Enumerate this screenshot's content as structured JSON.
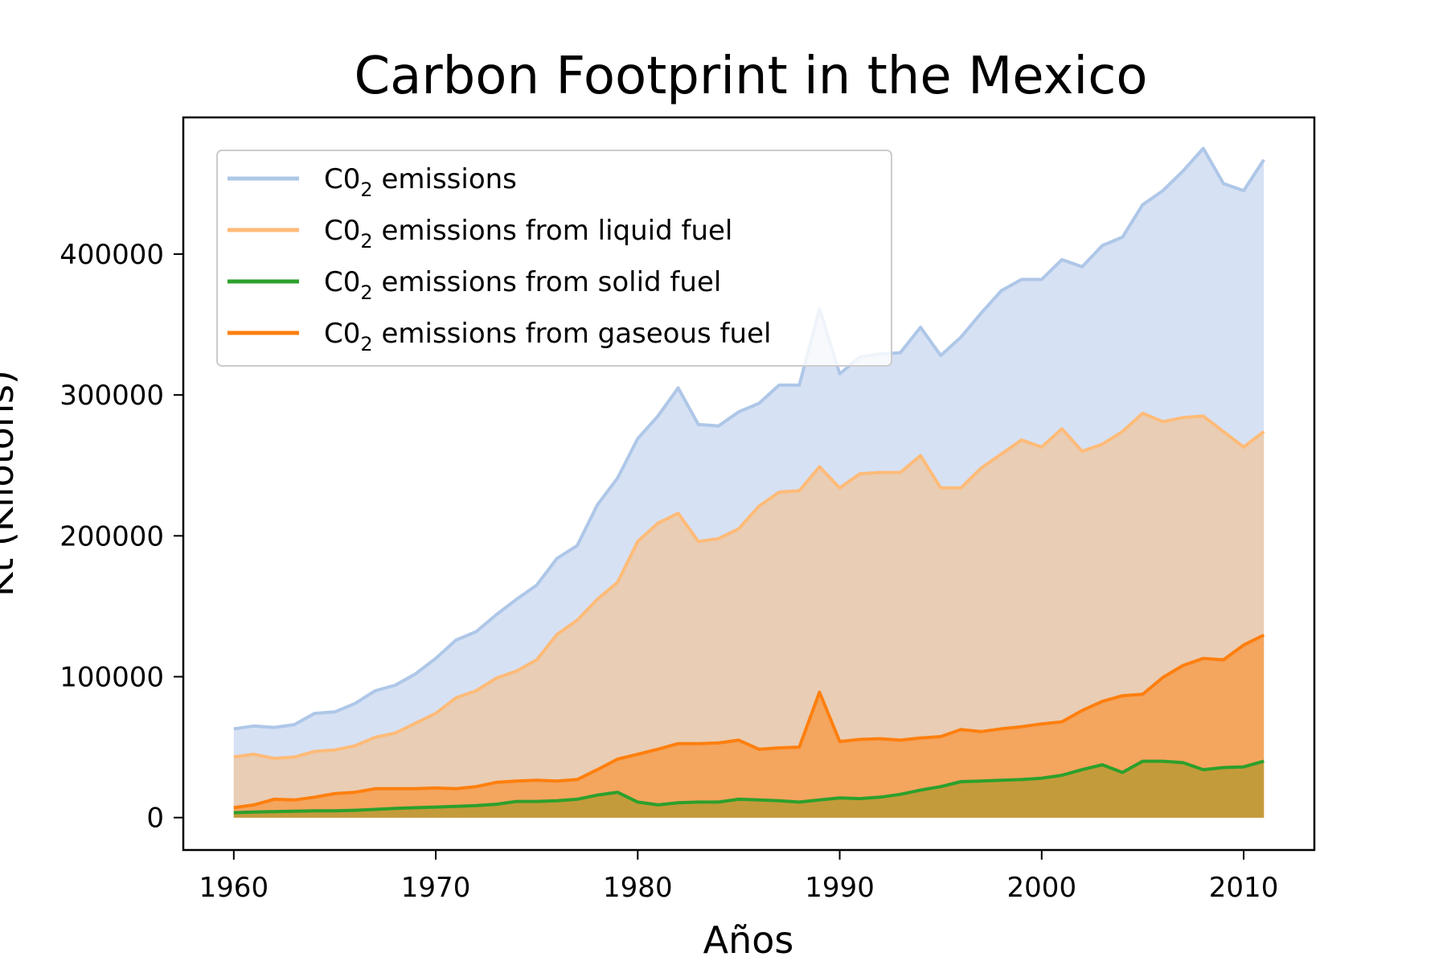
{
  "chart_data": {
    "type": "area",
    "title": "Carbon Footprint in the Mexico",
    "xlabel": "Años",
    "ylabel": "Kt (Kilotons)",
    "xlim": [
      1957.5,
      2013.5
    ],
    "ylim": [
      -23000,
      497000
    ],
    "xticks": [
      1960,
      1970,
      1980,
      1990,
      2000,
      2010
    ],
    "yticks": [
      0,
      100000,
      200000,
      300000,
      400000
    ],
    "grid": false,
    "legend_position": "upper-left",
    "x": [
      1960,
      1961,
      1962,
      1963,
      1964,
      1965,
      1966,
      1967,
      1968,
      1969,
      1970,
      1971,
      1972,
      1973,
      1974,
      1975,
      1976,
      1977,
      1978,
      1979,
      1980,
      1981,
      1982,
      1983,
      1984,
      1985,
      1986,
      1987,
      1988,
      1989,
      1990,
      1991,
      1992,
      1993,
      1994,
      1995,
      1996,
      1997,
      1998,
      1999,
      2000,
      2001,
      2002,
      2003,
      2004,
      2005,
      2006,
      2007,
      2008,
      2009,
      2010,
      2011
    ],
    "series": [
      {
        "name": "C0",
        "name_subscript": "2",
        "name_suffix": " emissions",
        "line_color": "#aec7e8",
        "fill_color": "#d6e1f4",
        "values": [
          63000,
          65000,
          64000,
          66000,
          74000,
          75000,
          81000,
          90000,
          94000,
          102000,
          113000,
          126000,
          132000,
          144000,
          155000,
          165000,
          184000,
          193000,
          222000,
          241000,
          269000,
          285000,
          305000,
          279000,
          278000,
          288000,
          294000,
          307000,
          307000,
          361000,
          315000,
          327000,
          329000,
          330000,
          348000,
          328000,
          341000,
          358000,
          374000,
          382000,
          382000,
          396000,
          391000,
          406000,
          412000,
          435000,
          445000,
          459000,
          475000,
          450000,
          445000,
          467000
        ]
      },
      {
        "name": "C0",
        "name_subscript": "2",
        "name_suffix": " emissions from liquid fuel",
        "line_color": "#ffbb78",
        "fill_color": "#e9cdb4",
        "values": [
          43000,
          45000,
          42000,
          43000,
          47000,
          48000,
          51000,
          57000,
          60000,
          67000,
          74000,
          85000,
          90000,
          99000,
          104000,
          112000,
          130000,
          140000,
          155000,
          167000,
          196000,
          209000,
          216000,
          196000,
          198000,
          205000,
          221000,
          231000,
          232000,
          249000,
          234000,
          244000,
          245000,
          245000,
          257000,
          234000,
          234000,
          248000,
          258000,
          268000,
          263000,
          276000,
          260000,
          265000,
          274000,
          287000,
          281000,
          284000,
          285000,
          274000,
          263000,
          274000
        ]
      },
      {
        "name": "C0",
        "name_subscript": "2",
        "name_suffix": " emissions from solid fuel",
        "line_color": "#2ca02c",
        "fill_color": "#c49b3a",
        "values": [
          3500,
          4000,
          4200,
          4500,
          4800,
          4800,
          5200,
          5800,
          6500,
          7000,
          7500,
          8000,
          8500,
          9500,
          11500,
          11500,
          12000,
          13000,
          16000,
          18000,
          11000,
          9000,
          10500,
          11000,
          11000,
          13000,
          12500,
          12000,
          11000,
          12500,
          14000,
          13500,
          14500,
          16500,
          19500,
          22000,
          25500,
          26000,
          26500,
          27000,
          28000,
          30000,
          34000,
          37500,
          32000,
          40000,
          40000,
          39000,
          34000,
          35500,
          36000,
          40000
        ]
      },
      {
        "name": "C0",
        "name_subscript": "2",
        "name_suffix": " emissions from gaseous fuel",
        "line_color": "#ff7f0e",
        "fill_color": "#f4a55e",
        "values": [
          7000,
          9000,
          13000,
          12500,
          14500,
          17000,
          18000,
          20500,
          20500,
          20500,
          21000,
          20500,
          22000,
          25000,
          26000,
          26500,
          26000,
          27000,
          34000,
          41500,
          45000,
          48500,
          52500,
          52500,
          53000,
          55000,
          48500,
          49500,
          50000,
          89000,
          54000,
          55500,
          56000,
          55000,
          56500,
          57500,
          62500,
          61000,
          63000,
          64500,
          66500,
          68000,
          76000,
          82500,
          86500,
          87500,
          99500,
          108000,
          113000,
          112000,
          122500,
          129500
        ]
      }
    ]
  }
}
